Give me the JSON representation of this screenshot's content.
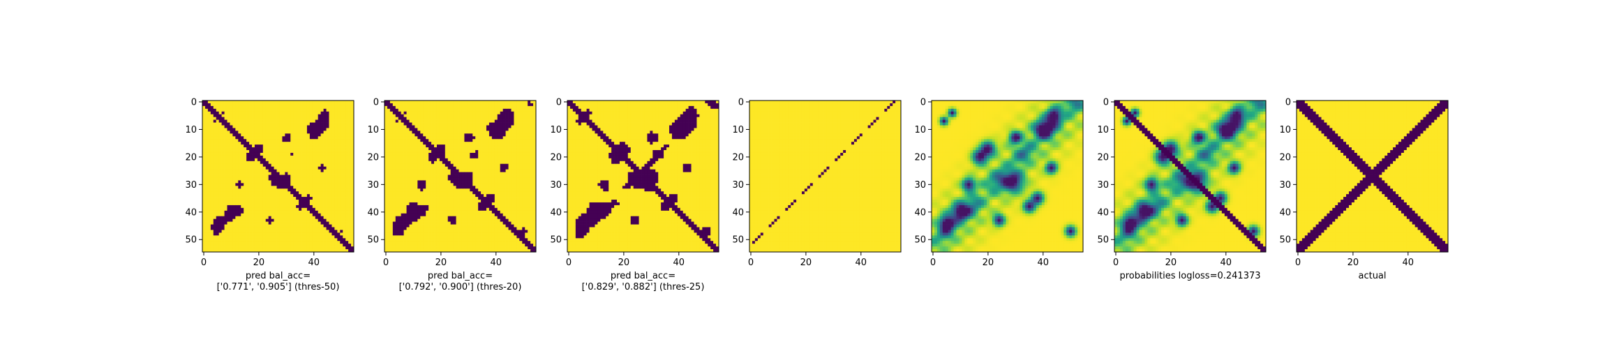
{
  "colors": {
    "low": "#440154",
    "high": "#fde725",
    "colormap": "viridis",
    "frame": "#000000"
  },
  "chart_data": [
    {
      "type": "heatmap",
      "label_lines": [
        "pred bal_acc=",
        "['0.771', '0.905'] (thres-50)"
      ],
      "grid_size": 55,
      "x_ticks": [
        0,
        20,
        40
      ],
      "y_ticks": [
        0,
        10,
        20,
        30,
        40,
        50
      ],
      "values": "binary prediction: main diagonal band (width ~3) plus scattered off-diagonal blobs near (10,40), (40,10), (45,2), (3,47)"
    },
    {
      "type": "heatmap",
      "label_lines": [
        "pred bal_acc=",
        "['0.792', '0.900'] (thres-20)"
      ],
      "grid_size": 55,
      "x_ticks": [
        0,
        20,
        40
      ],
      "y_ticks": [
        0,
        10,
        20,
        30,
        40,
        50
      ],
      "values": "binary prediction: main diagonal band plus larger off-diagonal blobs"
    },
    {
      "type": "heatmap",
      "label_lines": [
        "pred bal_acc=",
        "['0.829', '0.882'] (thres-25)"
      ],
      "grid_size": 55,
      "x_ticks": [
        0,
        20,
        40
      ],
      "y_ticks": [
        0,
        10,
        20,
        30,
        40,
        50
      ],
      "values": "binary prediction: main diagonal band, anti-diagonal fragments, blobs"
    },
    {
      "type": "heatmap",
      "label_lines": [],
      "grid_size": 55,
      "x_ticks": [
        0,
        20,
        40
      ],
      "y_ticks": [
        0,
        10,
        20,
        30,
        40,
        50
      ],
      "values": "mostly high; thin dashed low anti-diagonal"
    },
    {
      "type": "heatmap",
      "label_lines": [],
      "grid_size": 55,
      "x_ticks": [
        0,
        20,
        40
      ],
      "y_ticks": [
        0,
        10,
        20,
        30,
        40,
        50
      ],
      "values": "continuous viridis: low-value blobs along anti-diagonal structure on yellow background"
    },
    {
      "type": "heatmap",
      "label_lines": [
        "probabilities logloss=0.241373"
      ],
      "grid_size": 55,
      "x_ticks": [
        0,
        20,
        40
      ],
      "y_ticks": [
        0,
        10,
        20,
        30,
        40,
        50
      ],
      "values": "continuous viridis: previous panel plus dark main diagonal band"
    },
    {
      "type": "heatmap",
      "label_lines": [
        "actual"
      ],
      "grid_size": 55,
      "x_ticks": [
        0,
        20,
        40
      ],
      "y_ticks": [
        0,
        10,
        20,
        30,
        40,
        50
      ],
      "values": "binary ground truth: thick main diagonal band crossing thick anti-diagonal band"
    }
  ]
}
